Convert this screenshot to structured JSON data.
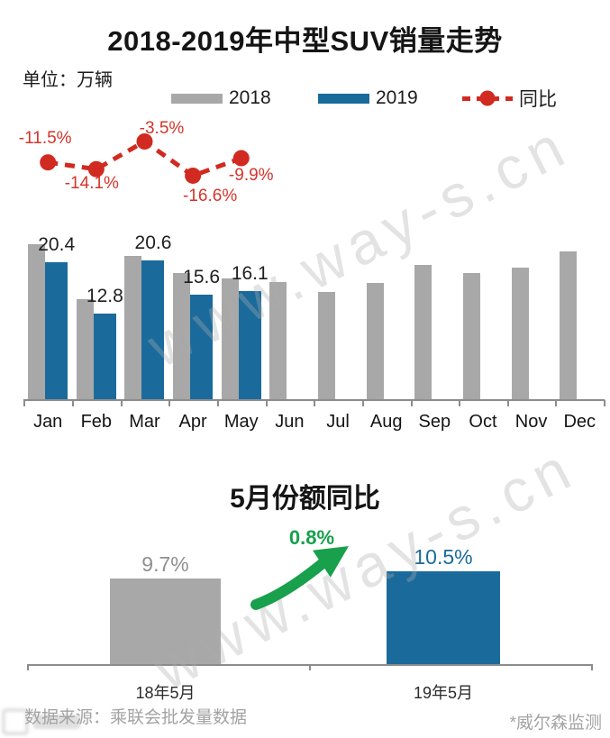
{
  "header": {
    "title": "2018-2019年中型SUV销量走势",
    "unit_label": "单位：万辆"
  },
  "legend": [
    {
      "label": "2018",
      "color": "#a8a8a8",
      "swatch": "bar"
    },
    {
      "label": "2019",
      "color": "#1a6b9c",
      "swatch": "bar"
    },
    {
      "label": "同比",
      "color": "#d12a20",
      "swatch": "dashed-line-dot"
    }
  ],
  "watermark": {
    "text": "www.way-s.cn"
  },
  "chart_data": [
    {
      "type": "bar",
      "title": "2018-2019年中型SUV销量走势",
      "unit": "万辆",
      "categories": [
        "Jan",
        "Feb",
        "Mar",
        "Apr",
        "May",
        "Jun",
        "Jul",
        "Aug",
        "Sep",
        "Oct",
        "Nov",
        "Dec"
      ],
      "series": [
        {
          "name": "2018",
          "color": "#a8a8a8",
          "values": [
            23.0,
            14.9,
            21.3,
            18.7,
            17.9,
            17.4,
            16.0,
            17.3,
            20.0,
            18.8,
            19.6,
            22.0
          ]
        },
        {
          "name": "2019",
          "color": "#1a6b9c",
          "values": [
            20.4,
            12.8,
            20.6,
            15.6,
            16.1,
            null,
            null,
            null,
            null,
            null,
            null,
            null
          ]
        }
      ],
      "value_labels_2019": [
        "20.4",
        "12.8",
        "20.6",
        "15.6",
        "16.1"
      ],
      "line_series": {
        "name": "同比",
        "color": "#d12a20",
        "unit": "%",
        "values": [
          -11.5,
          -14.1,
          -3.5,
          -16.6,
          -9.9
        ]
      },
      "line_labels": [
        "-11.5%",
        "-14.1%",
        "-3.5%",
        "-16.6%",
        "-9.9%"
      ],
      "ylim": [
        0,
        24
      ],
      "grid": false,
      "legend_position": "top"
    },
    {
      "type": "bar",
      "title": "5月份额同比",
      "categories": [
        "18年5月",
        "19年5月"
      ],
      "values": [
        9.7,
        10.5
      ],
      "value_labels": [
        "9.7%",
        "10.5%"
      ],
      "colors": [
        "#a8a8a8",
        "#1a6b9c"
      ],
      "label_colors": [
        "#8f8f8f",
        "#1a6b9c"
      ],
      "delta_label": "0.8%",
      "delta_color": "#18a04c",
      "ylim": [
        0,
        12
      ],
      "grid": false
    }
  ],
  "footer": {
    "source": "数据来源：乘联会批发量数据",
    "note": "*威尔森监测"
  }
}
